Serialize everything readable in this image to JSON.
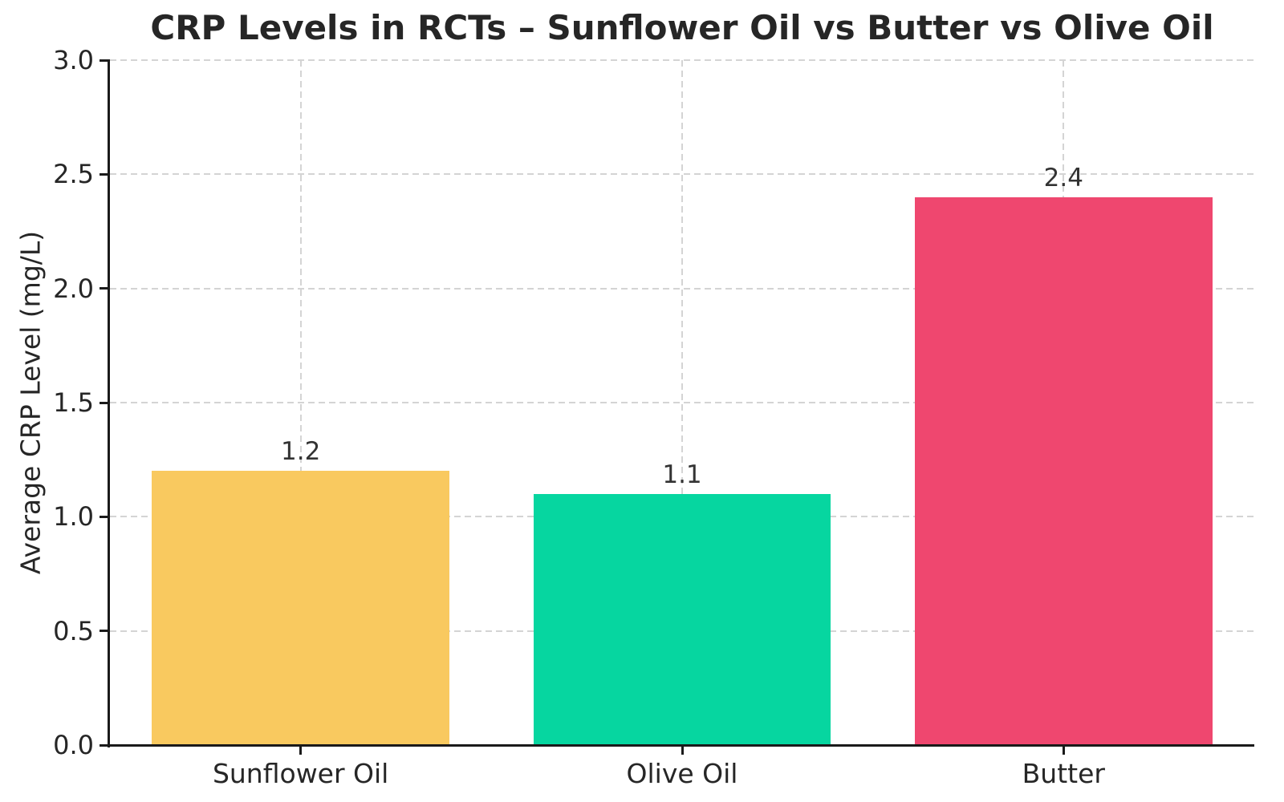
{
  "chart_data": {
    "type": "bar",
    "title": "CRP Levels in RCTs – Sunflower Oil vs Butter vs Olive Oil",
    "categories": [
      "Sunflower Oil",
      "Olive Oil",
      "Butter"
    ],
    "values": [
      1.2,
      1.1,
      2.4
    ],
    "value_labels": [
      "1.2",
      "1.1",
      "2.4"
    ],
    "bar_colors": [
      "#F9C95F",
      "#06D6A0",
      "#EF476F"
    ],
    "xlabel": "",
    "ylabel": "Average CRP Level (mg/L)",
    "ylim": [
      0.0,
      3.0
    ],
    "yticks": [
      0.0,
      0.5,
      1.0,
      1.5,
      2.0,
      2.5,
      3.0
    ],
    "ytick_labels": [
      "0.0",
      "0.5",
      "1.0",
      "1.5",
      "2.0",
      "2.5",
      "3.0"
    ],
    "grid": {
      "style": "dashed",
      "which": "both",
      "color": "#d4d4d4"
    },
    "legend": null,
    "spine_color": "#1a1a1a",
    "text_color": "#262626"
  }
}
